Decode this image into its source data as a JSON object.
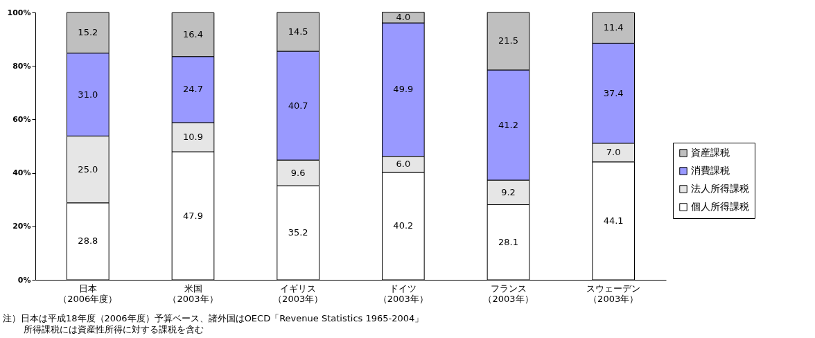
{
  "chart_data": {
    "type": "bar",
    "stacked": true,
    "categories": [
      "日本（2006年度）",
      "米国（2003年）",
      "イギリス（2003年）",
      "ドイツ（2003年）",
      "フランス（2003年）",
      "スウェーデン（2003年）"
    ],
    "series": [
      {
        "name": "個人所得課税",
        "color": "#ffffff",
        "values": [
          28.8,
          47.9,
          35.2,
          40.2,
          28.1,
          44.1
        ],
        "value_labels": [
          "28.8",
          "47.9",
          "35.2",
          "40.2",
          "28.1",
          "44.1"
        ]
      },
      {
        "name": "法人所得課税",
        "color": "#e6e6e6",
        "values": [
          25.0,
          10.9,
          9.6,
          6.0,
          9.2,
          7.0
        ],
        "value_labels": [
          "25.0",
          "10.9",
          "9.6",
          "6.0",
          "9.2",
          "7.0"
        ]
      },
      {
        "name": "消費課税",
        "color": "#9999ff",
        "values": [
          31.0,
          24.7,
          40.7,
          49.9,
          41.2,
          37.4
        ],
        "value_labels": [
          "31.0",
          "24.7",
          "40.7",
          "49.9",
          "41.2",
          "37.4"
        ]
      },
      {
        "name": "資産課税",
        "color": "#bfbfbf",
        "values": [
          15.2,
          16.4,
          14.5,
          4.0,
          21.5,
          11.4
        ],
        "value_labels": [
          "15.2",
          "16.4",
          "14.5",
          "4.0",
          "21.5",
          "11.4"
        ]
      }
    ],
    "ylim": [
      0,
      100
    ],
    "yticks": [
      {
        "value": 0,
        "label": "0%"
      },
      {
        "value": 20,
        "label": "20%"
      },
      {
        "value": 40,
        "label": "40%"
      },
      {
        "value": 60,
        "label": "60%"
      },
      {
        "value": 80,
        "label": "80%"
      },
      {
        "value": 100,
        "label": "100%"
      }
    ],
    "legend": "right",
    "annotations": [
      "注）日本は平成18年度（2006年度）予算ベース、諸外国はOECD「Revenue Statistics 1965-2004」",
      "所得課税には資産性所得に対する課税を含む"
    ]
  }
}
